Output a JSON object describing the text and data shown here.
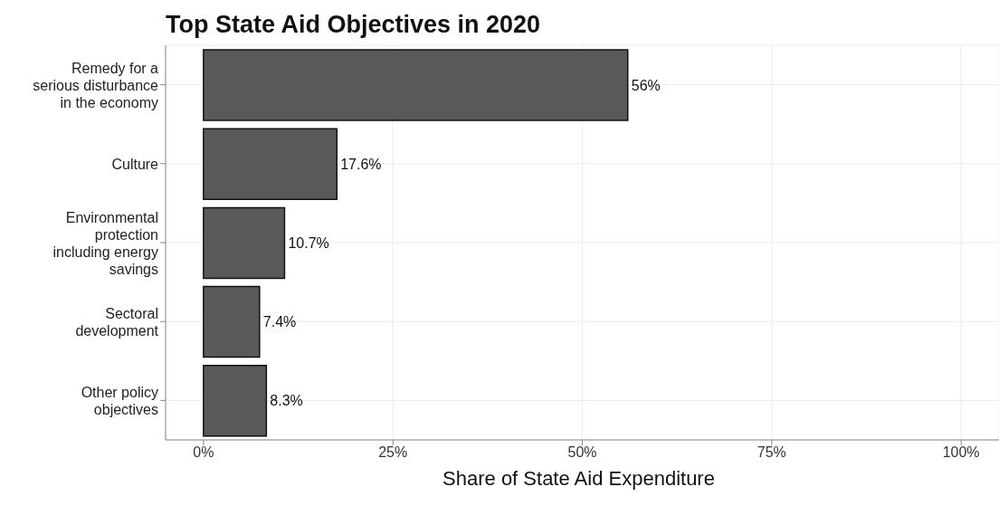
{
  "chart_data": {
    "type": "bar",
    "orientation": "horizontal",
    "title": "Top State Aid Objectives in 2020",
    "xlabel": "Share of State Aid Expenditure",
    "categories": [
      "Remedy for a serious disturbance in the economy",
      "Culture",
      "Environmental protection including energy savings",
      "Sectoral development",
      "Other policy objectives"
    ],
    "values": [
      56,
      17.6,
      10.7,
      7.4,
      8.3
    ],
    "value_labels": [
      "56%",
      "17.6%",
      "10.7%",
      "7.4%",
      "8.3%"
    ],
    "color": "#595959",
    "xlim": [
      -5,
      105
    ],
    "xticks": [
      {
        "value": 0,
        "label": "0%"
      },
      {
        "value": 25,
        "label": "25%"
      },
      {
        "value": 50,
        "label": "50%"
      },
      {
        "value": 75,
        "label": "75%"
      },
      {
        "value": 100,
        "label": "100%"
      }
    ],
    "grid": true
  }
}
